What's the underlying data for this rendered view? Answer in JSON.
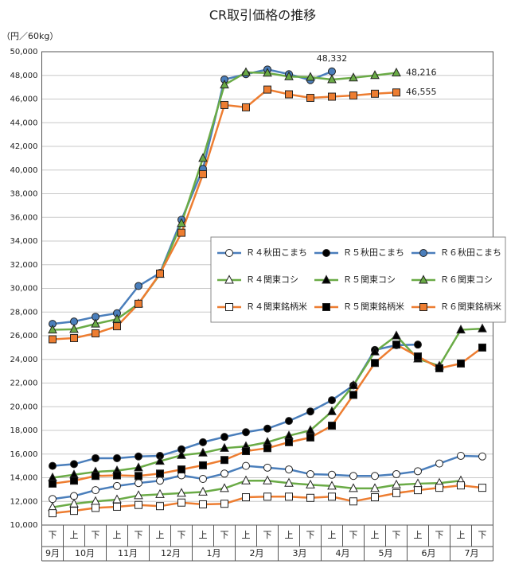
{
  "chart_data": {
    "type": "line",
    "title": "CR取引価格の推移",
    "y_label": "（円／60kg）",
    "categories": [
      "下",
      "上",
      "下",
      "上",
      "下",
      "上",
      "下",
      "上",
      "下",
      "上",
      "下",
      "上",
      "下",
      "上",
      "下",
      "上",
      "下",
      "上",
      "下",
      "上",
      "下"
    ],
    "month_groups": [
      {
        "label": "9月",
        "count": 1
      },
      {
        "label": "10月",
        "count": 2
      },
      {
        "label": "11月",
        "count": 2
      },
      {
        "label": "12月",
        "count": 2
      },
      {
        "label": "1月",
        "count": 2
      },
      {
        "label": "2月",
        "count": 2
      },
      {
        "label": "3月",
        "count": 2
      },
      {
        "label": "4月",
        "count": 2
      },
      {
        "label": "5月",
        "count": 2
      },
      {
        "label": "6月",
        "count": 2
      },
      {
        "label": "7月",
        "count": 2
      }
    ],
    "ylim": [
      10000,
      50000
    ],
    "yticks": [
      {
        "value": 10000,
        "label": "10,000"
      },
      {
        "value": 12000,
        "label": "12,000"
      },
      {
        "value": 14000,
        "label": "14,000"
      },
      {
        "value": 16000,
        "label": "16,000"
      },
      {
        "value": 18000,
        "label": "18,000"
      },
      {
        "value": 20000,
        "label": "20,000"
      },
      {
        "value": 22000,
        "label": "22,000"
      },
      {
        "value": 24000,
        "label": "24,000"
      },
      {
        "value": 26000,
        "label": "26,000"
      },
      {
        "value": 28000,
        "label": "28,000"
      },
      {
        "value": 30000,
        "label": "30,000"
      },
      {
        "value": 32000,
        "label": "32,000"
      },
      {
        "value": 34000,
        "label": "34,000"
      },
      {
        "value": 36000,
        "label": "36,000"
      },
      {
        "value": 38000,
        "label": "38,000"
      },
      {
        "value": 40000,
        "label": "40,000"
      },
      {
        "value": 42000,
        "label": "42,000"
      },
      {
        "value": 44000,
        "label": "44,000"
      },
      {
        "value": 46000,
        "label": "46,000"
      },
      {
        "value": 48000,
        "label": "48,000"
      },
      {
        "value": 50000,
        "label": "50,000"
      }
    ],
    "grid": true,
    "series": [
      {
        "name": "Ｒ４秋田こまち",
        "color": "#4a7ebb",
        "marker": "circle",
        "marker_fill": "#ffffff",
        "values": [
          12200,
          12450,
          12950,
          13300,
          13550,
          13750,
          14200,
          13900,
          14350,
          15000,
          14850,
          14700,
          14300,
          14250,
          14150,
          14150,
          14300,
          14550,
          15200,
          15850,
          15800
        ]
      },
      {
        "name": "Ｒ５秋田こまち",
        "color": "#4a7ebb",
        "marker": "circle",
        "marker_fill": "#000000",
        "values": [
          15000,
          15150,
          15650,
          15650,
          15800,
          15850,
          16400,
          17000,
          17450,
          17850,
          18150,
          18800,
          19600,
          20550,
          21800,
          24800,
          25200,
          25250,
          null,
          null,
          null
        ]
      },
      {
        "name": "Ｒ６秋田こまち",
        "color": "#4a7ebb",
        "marker": "circle",
        "marker_fill": "#4a7ebb",
        "values": [
          27000,
          27200,
          27600,
          27900,
          30200,
          31300,
          35800,
          40100,
          47650,
          48100,
          48500,
          48100,
          47600,
          48332,
          null,
          null,
          null,
          null,
          null,
          null,
          null
        ],
        "value_labels": [
          null,
          null,
          null,
          null,
          null,
          null,
          null,
          null,
          null,
          null,
          null,
          null,
          null,
          "48,332",
          null,
          null,
          null,
          null,
          null,
          null,
          null
        ]
      },
      {
        "name": "Ｒ４関東コシ",
        "color": "#6aab46",
        "marker": "triangle",
        "marker_fill": "#ffffff",
        "values": [
          11500,
          11800,
          12000,
          12150,
          12500,
          12600,
          12700,
          12800,
          13100,
          13750,
          13750,
          13550,
          13400,
          13300,
          13100,
          13100,
          13400,
          13500,
          13550,
          13750,
          null
        ]
      },
      {
        "name": "Ｒ５関東コシ",
        "color": "#6aab46",
        "marker": "triangle",
        "marker_fill": "#000000",
        "values": [
          14000,
          14250,
          14500,
          14600,
          14850,
          15400,
          15900,
          16100,
          16500,
          16650,
          17000,
          17550,
          18000,
          19600,
          21800,
          24650,
          26000,
          24050,
          23450,
          26500,
          26600
        ]
      },
      {
        "name": "Ｒ６関東コシ",
        "color": "#6aab46",
        "marker": "triangle",
        "marker_fill": "#6aab46",
        "values": [
          26500,
          26550,
          27000,
          27400,
          28700,
          31200,
          35500,
          41000,
          47200,
          48250,
          48200,
          47900,
          47850,
          47650,
          47800,
          48000,
          48216,
          null,
          null,
          null,
          null
        ],
        "value_labels": [
          null,
          null,
          null,
          null,
          null,
          null,
          null,
          null,
          null,
          null,
          null,
          null,
          null,
          null,
          null,
          null,
          "48,216",
          null,
          null,
          null,
          null
        ]
      },
      {
        "name": "Ｒ４関東銘柄米",
        "color": "#ed7d31",
        "marker": "square",
        "marker_fill": "#ffffff",
        "values": [
          11000,
          11200,
          11450,
          11550,
          11700,
          11600,
          11900,
          11750,
          11800,
          12350,
          12400,
          12400,
          12300,
          12400,
          12000,
          12350,
          12700,
          12950,
          13150,
          13350,
          13150
        ]
      },
      {
        "name": "Ｒ５関東銘柄米",
        "color": "#ed7d31",
        "marker": "square",
        "marker_fill": "#000000",
        "values": [
          13500,
          13750,
          14150,
          14200,
          14150,
          14350,
          14700,
          15050,
          15500,
          16250,
          16500,
          17000,
          17400,
          18400,
          21000,
          23700,
          25250,
          24250,
          23250,
          23650,
          25000
        ]
      },
      {
        "name": "Ｒ６関東銘柄米",
        "color": "#ed7d31",
        "marker": "square",
        "marker_fill": "#ed7d31",
        "values": [
          25700,
          25800,
          26200,
          26800,
          28700,
          31250,
          34700,
          39650,
          45500,
          45300,
          46800,
          46400,
          46100,
          46200,
          46300,
          46450,
          46555,
          null,
          null,
          null,
          null
        ],
        "value_labels": [
          null,
          null,
          null,
          null,
          null,
          null,
          null,
          null,
          null,
          null,
          null,
          null,
          null,
          null,
          null,
          null,
          "46,555",
          null,
          null,
          null,
          null
        ]
      }
    ]
  }
}
